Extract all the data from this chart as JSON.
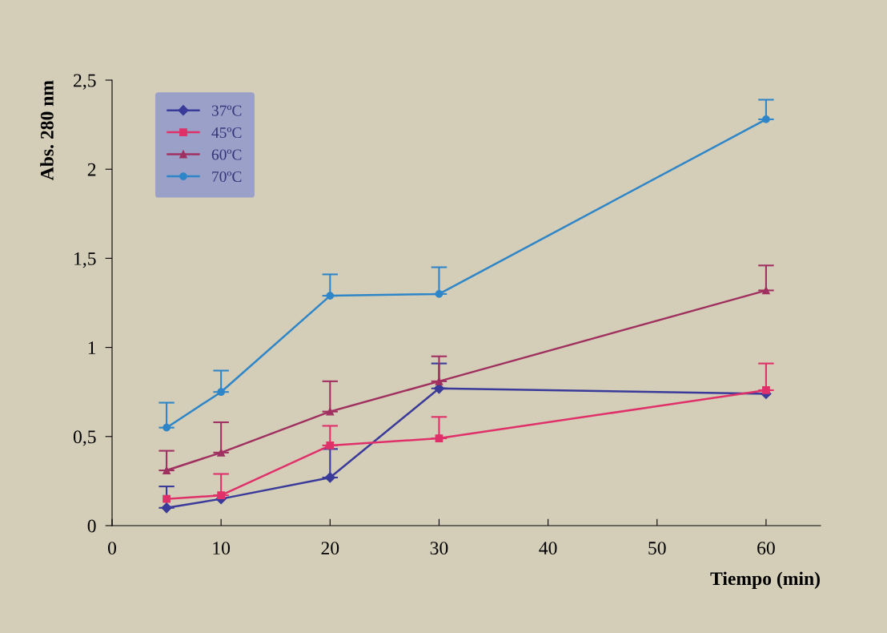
{
  "chart_data": {
    "type": "line",
    "xlabel": "Tiempo (min)",
    "ylabel": "Abs. 280 nm",
    "x": [
      5,
      10,
      20,
      30,
      60
    ],
    "series": [
      {
        "name": "37ºC",
        "color": "#3a3a9a",
        "marker": "diamond",
        "values": [
          0.1,
          0.15,
          0.27,
          0.77,
          0.74
        ],
        "errors": [
          [
            0.1,
            0.22
          ],
          null,
          [
            0.27,
            0.43
          ],
          [
            0.77,
            0.91
          ],
          null
        ]
      },
      {
        "name": "45ºC",
        "color": "#e0306a",
        "marker": "square",
        "values": [
          0.15,
          0.17,
          0.45,
          0.49,
          0.76
        ],
        "errors": [
          null,
          [
            0.17,
            0.29
          ],
          [
            0.45,
            0.56
          ],
          [
            0.49,
            0.61
          ],
          [
            0.76,
            0.91
          ]
        ]
      },
      {
        "name": "60ºC",
        "color": "#a03060",
        "marker": "triangle",
        "values": [
          0.31,
          0.41,
          0.64,
          0.81,
          1.32
        ],
        "errors": [
          [
            0.31,
            0.42
          ],
          [
            0.41,
            0.58
          ],
          [
            0.64,
            0.81
          ],
          [
            0.81,
            0.95
          ],
          [
            1.32,
            1.46
          ]
        ]
      },
      {
        "name": "70ºC",
        "color": "#2e86c8",
        "marker": "circle",
        "values": [
          0.55,
          0.75,
          1.29,
          1.3,
          2.28
        ],
        "errors": [
          [
            0.55,
            0.69
          ],
          [
            0.75,
            0.87
          ],
          [
            1.29,
            1.41
          ],
          [
            1.3,
            1.45
          ],
          [
            2.28,
            2.39
          ]
        ]
      }
    ],
    "xlim": [
      0,
      65
    ],
    "xticks": [
      0,
      10,
      20,
      30,
      40,
      50,
      60
    ],
    "ylim": [
      0,
      2.5
    ],
    "yticks": [
      0,
      {
        "value": 0.5,
        "label": "0,5"
      },
      1,
      {
        "value": 1.5,
        "label": "1,5"
      },
      2,
      {
        "value": 2.5,
        "label": "2,5"
      }
    ],
    "grid": false,
    "legend": "top left",
    "line_style": "solid"
  }
}
